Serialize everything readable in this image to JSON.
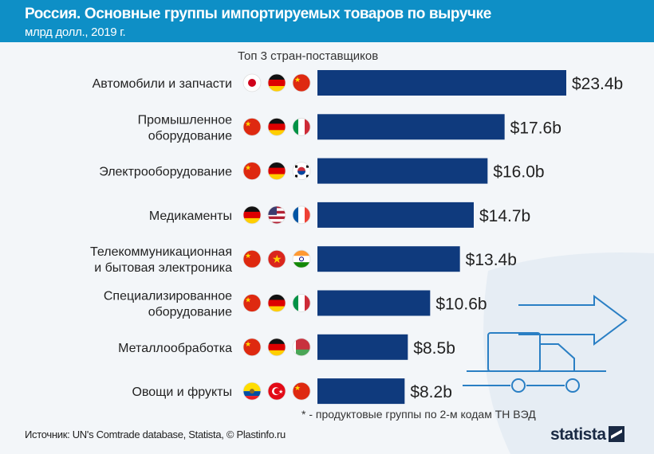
{
  "header": {
    "title": "Россия. Основные группы импортируемых товаров  по выручке",
    "subtitle": "млрд долл., 2019 г."
  },
  "column_label": "Топ 3 стран-поставщиков",
  "colors": {
    "header": "#0e8fc6",
    "bar": "#0f3a7d",
    "background": "#f3f6f9"
  },
  "chart_data": {
    "type": "bar",
    "orientation": "horizontal",
    "title": "Россия. Основные группы импортируемых товаров  по выручке",
    "subtitle": "млрд долл., 2019 г.",
    "categories": [
      [
        "Автомобили и запчасти"
      ],
      [
        "Промышленное",
        "оборудование"
      ],
      [
        "Электрооборудование"
      ],
      [
        "Медикаменты"
      ],
      [
        "Телекоммуникационная",
        "и бытовая электроника"
      ],
      [
        "Специализированное",
        "оборудование"
      ],
      [
        "Металлообработка"
      ],
      [
        "Овощи и фрукты"
      ]
    ],
    "values": [
      23.4,
      17.6,
      16.0,
      14.7,
      13.4,
      10.6,
      8.5,
      8.2
    ],
    "labels": [
      "$23.4b",
      "$17.6b",
      "$16.0b",
      "$14.7b",
      "$13.4b",
      "$10.6b",
      "$8.5b",
      "$8.2b"
    ],
    "top_suppliers": [
      [
        "japan",
        "germany",
        "china"
      ],
      [
        "china",
        "germany",
        "italy"
      ],
      [
        "china",
        "germany",
        "south-korea"
      ],
      [
        "germany",
        "usa",
        "france"
      ],
      [
        "china",
        "vietnam",
        "india"
      ],
      [
        "china",
        "germany",
        "italy"
      ],
      [
        "china",
        "germany",
        "belarus"
      ],
      [
        "ecuador",
        "turkey",
        "china"
      ]
    ],
    "grid": false
  },
  "footer": {
    "note": "* - продуктовые группы по 2-м кодам ТН ВЭД",
    "source": "Источник: UN's Comtrade database,  Statista, © Plastinfo.ru",
    "logo": "statista"
  }
}
